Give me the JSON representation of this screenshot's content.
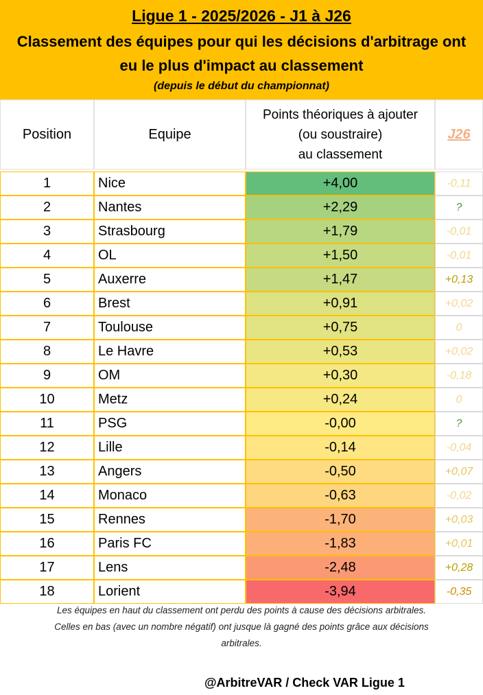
{
  "header": {
    "title": "Ligue 1 - 2025/2026 - J1 à J26",
    "subtitle_line1": "Classement des équipes pour qui les décisions d'arbitrage ont",
    "subtitle_line2": "eu le plus d'impact au classement",
    "note": "(depuis le début du championnat)"
  },
  "table": {
    "col_position": "Position",
    "col_team": "Equipe",
    "col_points_1": "Points théoriques à ajouter",
    "col_points_2": "(ou soustraire)",
    "col_points_3": "au classement",
    "col_round": "J26",
    "rows": [
      {
        "pos": "1",
        "team": "Nice",
        "points": "+4,00",
        "points_value": 4.0,
        "round": "-0,11",
        "round_color": "#f4d58d"
      },
      {
        "pos": "2",
        "team": "Nantes",
        "points": "+2,29",
        "points_value": 2.29,
        "round": "?",
        "round_color": "#4f9a3a"
      },
      {
        "pos": "3",
        "team": "Strasbourg",
        "points": "+1,79",
        "points_value": 1.79,
        "round": "-0,01",
        "round_color": "#f4d58d"
      },
      {
        "pos": "4",
        "team": "OL",
        "points": "+1,50",
        "points_value": 1.5,
        "round": "-0,01",
        "round_color": "#f4d58d"
      },
      {
        "pos": "5",
        "team": "Auxerre",
        "points": "+1,47",
        "points_value": 1.47,
        "round": "+0,13",
        "round_color": "#b8a000"
      },
      {
        "pos": "6",
        "team": "Brest",
        "points": "+0,91",
        "points_value": 0.91,
        "round": "+0,02",
        "round_color": "#f4d58d"
      },
      {
        "pos": "7",
        "team": "Toulouse",
        "points": "+0,75",
        "points_value": 0.75,
        "round": "0",
        "round_color": "#f4d58d"
      },
      {
        "pos": "8",
        "team": "Le Havre",
        "points": "+0,53",
        "points_value": 0.53,
        "round": "+0,02",
        "round_color": "#f4d58d"
      },
      {
        "pos": "9",
        "team": "OM",
        "points": "+0,30",
        "points_value": 0.3,
        "round": "-0,18",
        "round_color": "#f4d58d"
      },
      {
        "pos": "10",
        "team": "Metz",
        "points": "+0,24",
        "points_value": 0.24,
        "round": "0",
        "round_color": "#f4d58d"
      },
      {
        "pos": "11",
        "team": "PSG",
        "points": "-0,00",
        "points_value": 0.0,
        "round": "?",
        "round_color": "#4f9a3a"
      },
      {
        "pos": "12",
        "team": "Lille",
        "points": "-0,14",
        "points_value": -0.14,
        "round": "-0,04",
        "round_color": "#f4d58d"
      },
      {
        "pos": "13",
        "team": "Angers",
        "points": "-0,50",
        "points_value": -0.5,
        "round": "+0,07",
        "round_color": "#e8c35a"
      },
      {
        "pos": "14",
        "team": "Monaco",
        "points": "-0,63",
        "points_value": -0.63,
        "round": "-0,02",
        "round_color": "#f4d58d"
      },
      {
        "pos": "15",
        "team": "Rennes",
        "points": "-1,70",
        "points_value": -1.7,
        "round": "+0,03",
        "round_color": "#e8c35a"
      },
      {
        "pos": "16",
        "team": "Paris FC",
        "points": "-1,83",
        "points_value": -1.83,
        "round": "+0,01",
        "round_color": "#e8c35a"
      },
      {
        "pos": "17",
        "team": "Lens",
        "points": "-2,48",
        "points_value": -2.48,
        "round": "+0,28",
        "round_color": "#b8a000"
      },
      {
        "pos": "18",
        "team": "Lorient",
        "points": "-3,94",
        "points_value": -3.94,
        "round": "-0,35",
        "round_color": "#d08a00"
      }
    ]
  },
  "footer": {
    "note_line1": "Les équipes en haut du classement ont perdu des points à cause des décisions arbitrales.",
    "note_line2": "Celles en bas (avec un nombre négatif) ont jusque là gagné des points grâce aux décisions",
    "note_line3": "arbitrales.",
    "credit": "@ArbitreVAR / Check VAR Ligue 1"
  }
}
